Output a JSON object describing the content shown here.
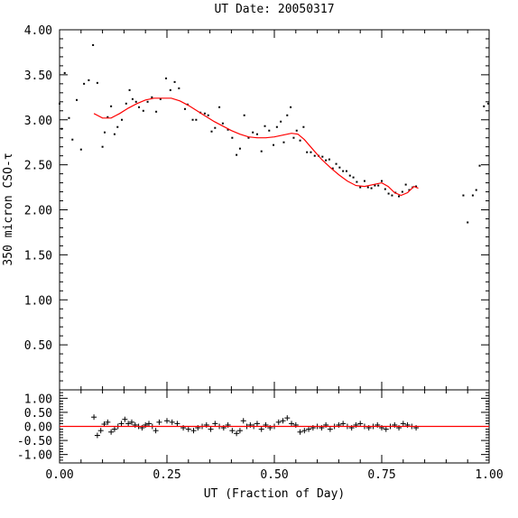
{
  "chart_data": [
    {
      "type": "scatter",
      "title": "UT Date: 20050317",
      "xlabel": "",
      "ylabel": "350 micron CSO-τ",
      "xlim": [
        0,
        1
      ],
      "ylim": [
        0,
        4
      ],
      "yticks": [
        "0.50",
        "1.00",
        "1.50",
        "2.00",
        "2.50",
        "3.00",
        "3.50",
        "4.00"
      ],
      "grid": false,
      "series": [
        {
          "kind": "points",
          "color": "#000000",
          "x": [
            0.0,
            0.005,
            0.012,
            0.022,
            0.03,
            0.04,
            0.05,
            0.057,
            0.068,
            0.078,
            0.088,
            0.1,
            0.105,
            0.112,
            0.12,
            0.128,
            0.135,
            0.145,
            0.155,
            0.163,
            0.17,
            0.178,
            0.185,
            0.195,
            0.205,
            0.215,
            0.225,
            0.235,
            0.248,
            0.258,
            0.268,
            0.278,
            0.292,
            0.298,
            0.31,
            0.318,
            0.328,
            0.338,
            0.346,
            0.354,
            0.362,
            0.372,
            0.38,
            0.392,
            0.402,
            0.412,
            0.42,
            0.43,
            0.44,
            0.45,
            0.46,
            0.47,
            0.478,
            0.488,
            0.498,
            0.506,
            0.515,
            0.522,
            0.53,
            0.538,
            0.545,
            0.552,
            0.56,
            0.568,
            0.576,
            0.585,
            0.594,
            0.603,
            0.612,
            0.62,
            0.628,
            0.636,
            0.644,
            0.652,
            0.66,
            0.668,
            0.676,
            0.684,
            0.692,
            0.7,
            0.71,
            0.718,
            0.726,
            0.734,
            0.742,
            0.75,
            0.758,
            0.766,
            0.774,
            0.782,
            0.79,
            0.798,
            0.806,
            0.814,
            0.822,
            0.83,
            0.94,
            0.95,
            0.962,
            0.97,
            0.978,
            0.988,
            0.998
          ],
          "y": [
            3.18,
            2.9,
            3.52,
            3.02,
            2.78,
            3.22,
            2.67,
            3.4,
            3.44,
            3.83,
            3.41,
            2.7,
            2.86,
            3.03,
            3.15,
            2.84,
            2.92,
            3.0,
            3.18,
            3.33,
            3.23,
            3.2,
            3.14,
            3.1,
            3.2,
            3.25,
            3.09,
            3.23,
            3.46,
            3.33,
            3.42,
            3.35,
            3.12,
            3.17,
            3.0,
            3.0,
            3.08,
            3.07,
            3.05,
            2.87,
            2.91,
            3.14,
            2.96,
            2.89,
            2.8,
            2.61,
            2.68,
            3.05,
            2.8,
            2.86,
            2.84,
            2.65,
            2.93,
            2.88,
            2.72,
            2.92,
            2.98,
            2.75,
            3.05,
            3.14,
            2.8,
            2.88,
            2.77,
            2.92,
            2.64,
            2.64,
            2.6,
            2.6,
            2.59,
            2.55,
            2.56,
            2.46,
            2.51,
            2.47,
            2.43,
            2.43,
            2.38,
            2.36,
            2.31,
            2.25,
            2.32,
            2.25,
            2.24,
            2.27,
            2.27,
            2.32,
            2.23,
            2.18,
            2.16,
            2.19,
            2.15,
            2.2,
            2.28,
            2.22,
            2.25,
            2.26,
            2.16,
            1.86,
            2.16,
            2.22,
            2.49,
            3.15,
            3.18
          ]
        },
        {
          "kind": "fit",
          "color": "#ff0000",
          "x": [
            0.08,
            0.1,
            0.12,
            0.14,
            0.16,
            0.18,
            0.2,
            0.22,
            0.24,
            0.26,
            0.28,
            0.3,
            0.32,
            0.34,
            0.36,
            0.38,
            0.4,
            0.42,
            0.44,
            0.46,
            0.48,
            0.5,
            0.52,
            0.54,
            0.555,
            0.57,
            0.59,
            0.61,
            0.63,
            0.65,
            0.67,
            0.69,
            0.71,
            0.73,
            0.75,
            0.765,
            0.78,
            0.795,
            0.81,
            0.825,
            0.835
          ],
          "y": [
            3.07,
            3.02,
            3.02,
            3.07,
            3.13,
            3.18,
            3.22,
            3.24,
            3.24,
            3.24,
            3.21,
            3.16,
            3.1,
            3.04,
            2.98,
            2.93,
            2.88,
            2.84,
            2.81,
            2.8,
            2.8,
            2.81,
            2.83,
            2.85,
            2.84,
            2.78,
            2.67,
            2.56,
            2.47,
            2.39,
            2.32,
            2.27,
            2.26,
            2.28,
            2.3,
            2.26,
            2.19,
            2.16,
            2.19,
            2.26,
            2.24
          ]
        }
      ]
    },
    {
      "type": "scatter",
      "title": "",
      "xlabel": "UT (Fraction of Day)",
      "ylabel": "",
      "xlim": [
        0,
        1
      ],
      "ylim": [
        -1.3,
        1.3
      ],
      "xticks": [
        "0.00",
        "0.25",
        "0.50",
        "0.75",
        "1.00"
      ],
      "yticks": [
        "-1.00",
        "-0.50",
        "0.00",
        "0.50",
        "1.00"
      ],
      "grid": false,
      "series": [
        {
          "kind": "residuals",
          "color": "#000000",
          "x": [
            0.08,
            0.088,
            0.096,
            0.104,
            0.112,
            0.12,
            0.128,
            0.136,
            0.144,
            0.152,
            0.16,
            0.168,
            0.176,
            0.184,
            0.192,
            0.2,
            0.208,
            0.216,
            0.224,
            0.232,
            0.25,
            0.262,
            0.274,
            0.288,
            0.3,
            0.312,
            0.322,
            0.332,
            0.342,
            0.352,
            0.362,
            0.372,
            0.382,
            0.392,
            0.402,
            0.412,
            0.42,
            0.428,
            0.436,
            0.444,
            0.452,
            0.46,
            0.47,
            0.48,
            0.49,
            0.5,
            0.51,
            0.52,
            0.53,
            0.54,
            0.55,
            0.56,
            0.57,
            0.58,
            0.59,
            0.6,
            0.61,
            0.62,
            0.63,
            0.64,
            0.65,
            0.66,
            0.67,
            0.68,
            0.69,
            0.7,
            0.71,
            0.72,
            0.73,
            0.74,
            0.75,
            0.76,
            0.77,
            0.78,
            0.79,
            0.8,
            0.81,
            0.82,
            0.83
          ],
          "y": [
            0.33,
            -0.32,
            -0.15,
            0.08,
            0.15,
            -0.2,
            -0.1,
            0.0,
            0.1,
            0.25,
            0.1,
            0.15,
            0.05,
            0.0,
            -0.05,
            0.05,
            0.1,
            0.0,
            -0.15,
            0.15,
            0.2,
            0.15,
            0.1,
            -0.05,
            -0.1,
            -0.15,
            -0.05,
            0.0,
            0.05,
            -0.1,
            0.1,
            0.0,
            -0.05,
            0.05,
            -0.15,
            -0.25,
            -0.15,
            0.2,
            0.0,
            0.05,
            0.0,
            0.1,
            -0.1,
            0.05,
            -0.05,
            0.0,
            0.15,
            0.2,
            0.3,
            0.1,
            0.05,
            -0.2,
            -0.15,
            -0.1,
            -0.05,
            0.0,
            -0.05,
            0.05,
            -0.1,
            0.0,
            0.05,
            0.1,
            0.0,
            -0.05,
            0.05,
            0.1,
            0.0,
            -0.05,
            0.0,
            0.05,
            -0.05,
            -0.1,
            0.0,
            0.05,
            -0.05,
            0.1,
            0.05,
            0.0,
            -0.05
          ]
        },
        {
          "kind": "zero-line",
          "color": "#ff0000",
          "x": [
            0,
            1
          ],
          "y": [
            0,
            0
          ]
        }
      ]
    }
  ]
}
